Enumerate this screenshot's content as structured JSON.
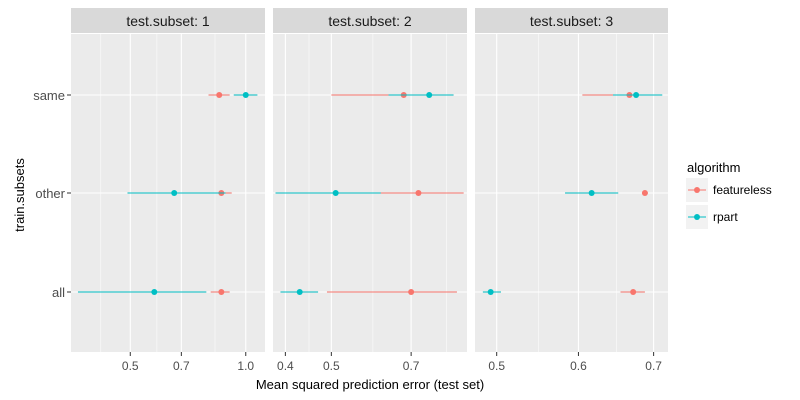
{
  "colors": {
    "featureless": "#F8766D",
    "rpart": "#00BFC4",
    "panel_bg": "#EBEBEB",
    "strip_bg": "#D9D9D9",
    "grid": "#FFFFFF"
  },
  "chart_data": {
    "type": "scatter",
    "subtype": "faceted dot-and-interval plot",
    "facet_label": "test.subset",
    "facet_prefix": "test.subset: ",
    "facets": [
      "1",
      "2",
      "3"
    ],
    "y_categories": [
      "same",
      "other",
      "all"
    ],
    "ylabel": "train.subsets",
    "xlabel": "Mean squared prediction error (test set)",
    "x_scale": "sqrt",
    "grid": true,
    "legend": {
      "title": "algorithm",
      "position": "right",
      "entries": [
        "featureless",
        "rpart"
      ]
    },
    "panels": [
      {
        "facet": "1",
        "xlim": [
          0.31,
          1.1
        ],
        "ticks": [
          0.5,
          0.7,
          1.0
        ],
        "tick_labels": [
          "0.5",
          "0.7",
          "1.0"
        ],
        "series": [
          {
            "name": "featureless",
            "points": [
              {
                "y": "same",
                "x": 0.87,
                "lo": 0.82,
                "hi": 0.92
              },
              {
                "y": "other",
                "x": 0.88,
                "lo": 0.83,
                "hi": 0.93
              },
              {
                "y": "all",
                "x": 0.88,
                "lo": 0.83,
                "hi": 0.92
              }
            ]
          },
          {
            "name": "rpart",
            "points": [
              {
                "y": "same",
                "x": 1.0,
                "lo": 0.94,
                "hi": 1.06
              },
              {
                "y": "other",
                "x": 0.67,
                "lo": 0.49,
                "hi": 0.9
              },
              {
                "y": "all",
                "x": 0.59,
                "lo": 0.33,
                "hi": 0.81
              }
            ]
          }
        ]
      },
      {
        "facet": "2",
        "xlim": [
          0.375,
          0.86
        ],
        "ticks": [
          0.4,
          0.5,
          0.7
        ],
        "tick_labels": [
          "0.4",
          "0.5",
          "0.7"
        ],
        "series": [
          {
            "name": "featureless",
            "points": [
              {
                "y": "same",
                "x": 0.68,
                "lo": 0.5,
                "hi": 0.82
              },
              {
                "y": "other",
                "x": 0.72,
                "lo": 0.61,
                "hi": 0.85
              },
              {
                "y": "all",
                "x": 0.7,
                "lo": 0.49,
                "hi": 0.83
              }
            ]
          },
          {
            "name": "rpart",
            "points": [
              {
                "y": "same",
                "x": 0.75,
                "lo": 0.64,
                "hi": 0.82
              },
              {
                "y": "other",
                "x": 0.51,
                "lo": 0.38,
                "hi": 0.62
              },
              {
                "y": "all",
                "x": 0.43,
                "lo": 0.39,
                "hi": 0.47
              }
            ]
          }
        ]
      },
      {
        "facet": "3",
        "xlim": [
          0.475,
          0.72
        ],
        "ticks": [
          0.5,
          0.6,
          0.7
        ],
        "tick_labels": [
          "0.5",
          "0.6",
          "0.7"
        ],
        "series": [
          {
            "name": "featureless",
            "points": [
              {
                "y": "same",
                "x": 0.667,
                "lo": 0.605,
                "hi": 0.675
              },
              {
                "y": "other",
                "x": 0.688,
                "lo": 0.684,
                "hi": 0.692
              },
              {
                "y": "all",
                "x": 0.672,
                "lo": 0.655,
                "hi": 0.688
              }
            ]
          },
          {
            "name": "rpart",
            "points": [
              {
                "y": "same",
                "x": 0.676,
                "lo": 0.645,
                "hi": 0.712
              },
              {
                "y": "other",
                "x": 0.617,
                "lo": 0.583,
                "hi": 0.652
              },
              {
                "y": "all",
                "x": 0.493,
                "lo": 0.484,
                "hi": 0.505
              }
            ]
          }
        ]
      }
    ]
  }
}
